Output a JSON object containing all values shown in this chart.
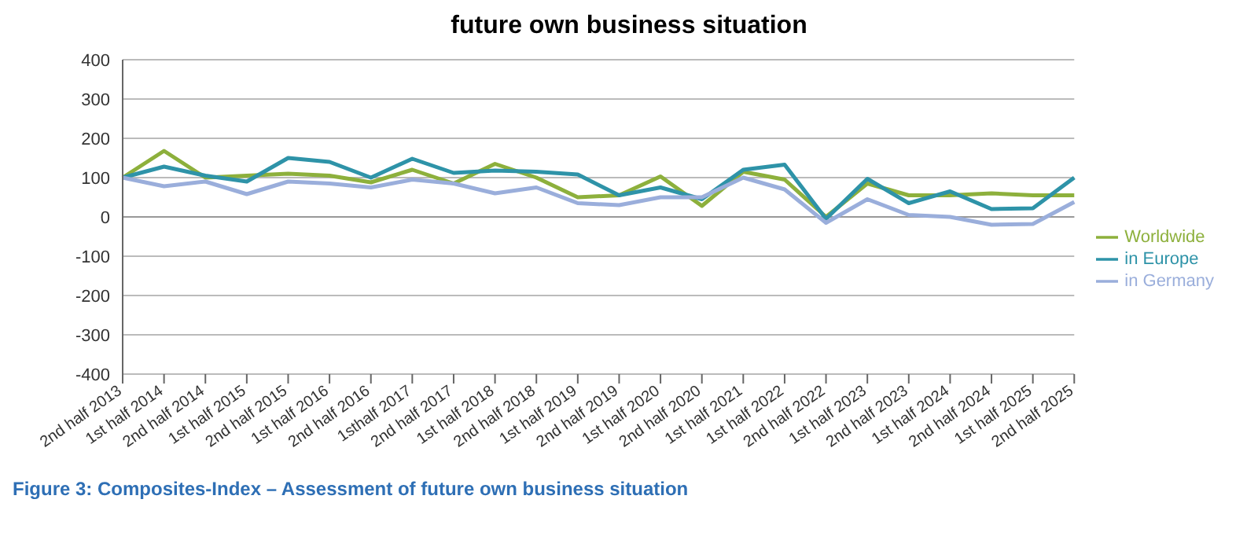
{
  "chart_data": {
    "type": "line",
    "title": "future own business situation",
    "categories": [
      "2nd half 2013",
      "1st half 2014",
      "2nd half 2014",
      "1st half 2015",
      "2nd half 2015",
      "1st half 2016",
      "2nd half 2016",
      "1sthalf 2017",
      "2nd half 2017",
      "1st half 2018",
      "2nd half 2018",
      "1st half 2019",
      "2nd half 2019",
      "1st half 2020",
      "2nd half 2020",
      "1st half 2021",
      "1st half 2022",
      "2nd half 2022",
      "1st half 2023",
      "2nd half 2023",
      "1st half 2024",
      "2nd half 2024",
      "1st half 2025",
      "2nd half 2025"
    ],
    "series": [
      {
        "name": "Worldwide",
        "color": "#8db03c",
        "values": [
          100,
          168,
          100,
          105,
          110,
          105,
          88,
          120,
          85,
          135,
          100,
          50,
          55,
          103,
          28,
          115,
          95,
          0,
          85,
          55,
          55,
          60,
          55,
          55
        ]
      },
      {
        "name": "in Europe",
        "color": "#2e93a8",
        "values": [
          100,
          128,
          105,
          90,
          150,
          140,
          100,
          148,
          112,
          118,
          115,
          108,
          55,
          75,
          45,
          120,
          133,
          -5,
          97,
          35,
          65,
          20,
          22,
          100
        ]
      },
      {
        "name": "in Germany",
        "color": "#9aaedb",
        "values": [
          100,
          78,
          90,
          58,
          90,
          85,
          75,
          95,
          85,
          60,
          75,
          35,
          30,
          50,
          50,
          100,
          70,
          -15,
          45,
          5,
          0,
          -20,
          -18,
          38
        ]
      }
    ],
    "ylim": [
      -400,
      400
    ],
    "yticks": [
      -400,
      -300,
      -200,
      -100,
      0,
      100,
      200,
      300,
      400
    ],
    "grid": "y",
    "legend": "right",
    "marker": "none",
    "line_style": "solid",
    "annotations": [
      "Figure 3: Composites-Index – Assessment of future own business situation"
    ]
  }
}
